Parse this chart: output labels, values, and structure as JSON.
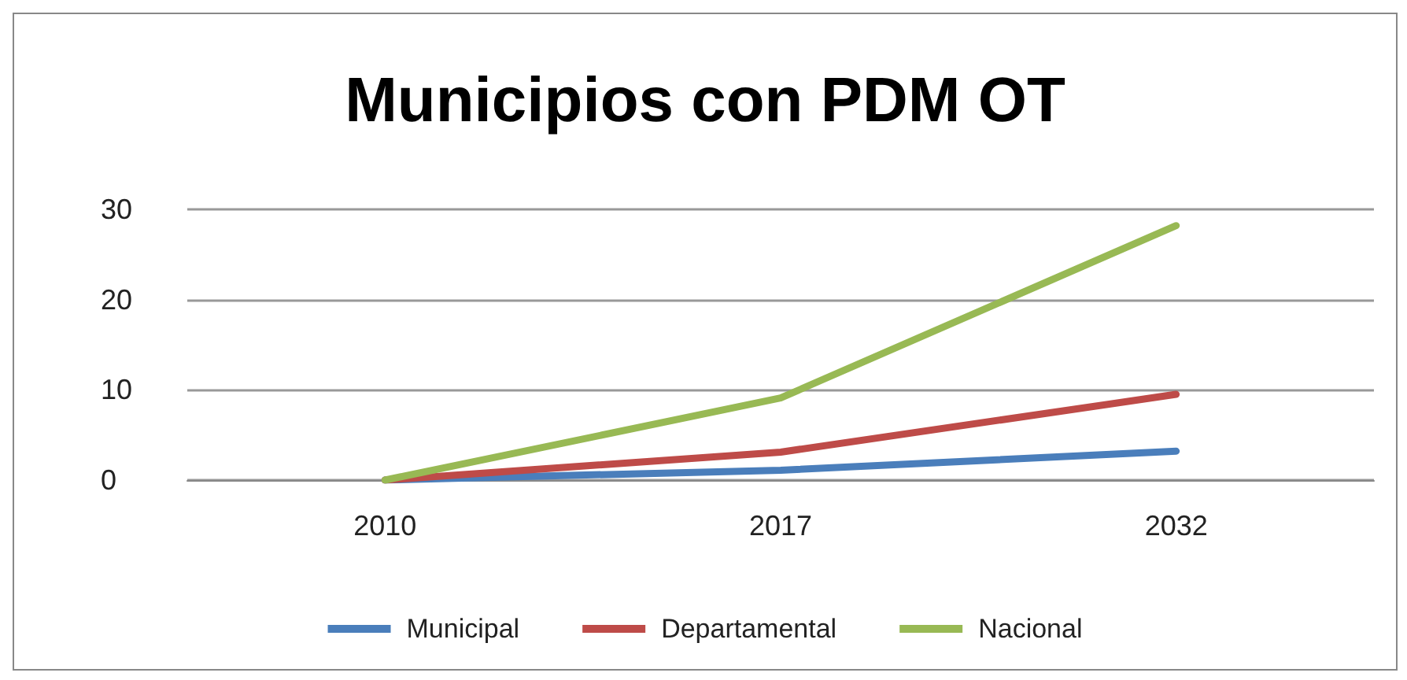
{
  "chart_data": {
    "type": "line",
    "title": "Municipios con PDM OT",
    "categories": [
      "2010",
      "2017",
      "2032"
    ],
    "series": [
      {
        "name": "Municipal",
        "color": "#4a7ebb",
        "values": [
          0,
          1.1,
          3.2
        ]
      },
      {
        "name": "Departamental",
        "color": "#be4b48",
        "values": [
          0,
          3.1,
          9.5
        ]
      },
      {
        "name": "Nacional",
        "color": "#98b954",
        "values": [
          0,
          9.1,
          28.2
        ]
      }
    ],
    "ylim": [
      0,
      30
    ],
    "yticks": [
      0,
      10,
      20,
      30
    ],
    "grid": "y",
    "legend": "bottom",
    "marker": "none",
    "line_style": "solid"
  }
}
